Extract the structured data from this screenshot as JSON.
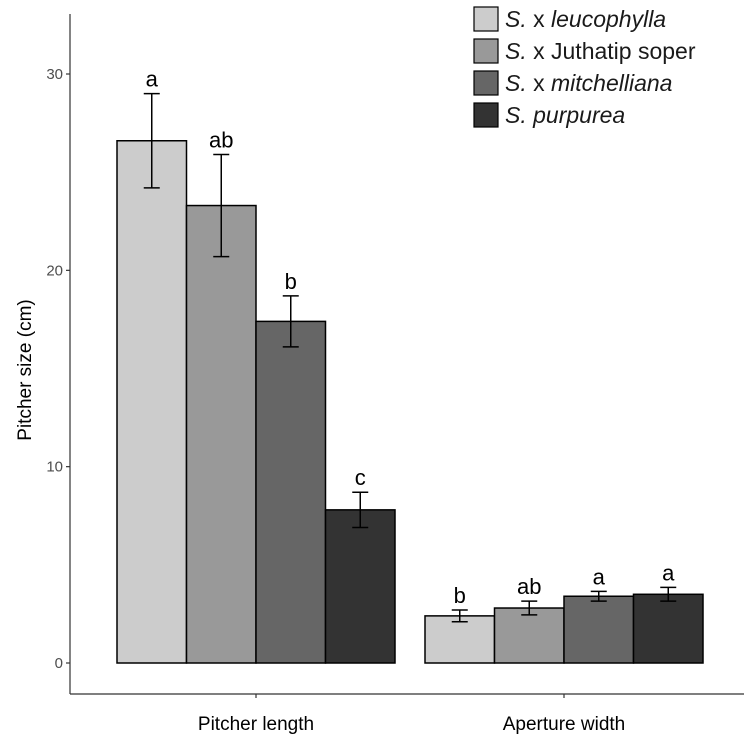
{
  "chart_data": {
    "type": "bar",
    "ylabel": "Pitcher size (cm)",
    "xlabel": "",
    "ylim": [
      0,
      33
    ],
    "yticks": [
      0,
      10,
      20,
      30
    ],
    "categories": [
      "Pitcher length",
      "Aperture width"
    ],
    "legend_position": "top-right",
    "grid": false,
    "series": [
      {
        "name": "S. x leucophylla",
        "name_parts": [
          {
            "text": "S.",
            "italic": true
          },
          {
            "text": " x ",
            "italic": false
          },
          {
            "text": "leucophylla",
            "italic": true
          }
        ],
        "color": "#cccccc",
        "values": [
          26.6,
          2.4
        ],
        "errors": [
          2.4,
          0.3
        ],
        "letters": [
          "a",
          "b"
        ]
      },
      {
        "name": "S. x Juthatip soper",
        "name_parts": [
          {
            "text": "S.",
            "italic": true
          },
          {
            "text": " x Juthatip soper",
            "italic": false
          }
        ],
        "color": "#999999",
        "values": [
          23.3,
          2.8
        ],
        "errors": [
          2.6,
          0.35
        ],
        "letters": [
          "ab",
          "ab"
        ]
      },
      {
        "name": "S. x mitchelliana",
        "name_parts": [
          {
            "text": "S.",
            "italic": true
          },
          {
            "text": " x ",
            "italic": false
          },
          {
            "text": "mitchelliana",
            "italic": true
          }
        ],
        "color": "#666666",
        "values": [
          17.4,
          3.4
        ],
        "errors": [
          1.3,
          0.25
        ],
        "letters": [
          "b",
          "a"
        ]
      },
      {
        "name": "S. purpurea",
        "name_parts": [
          {
            "text": "S.",
            "italic": true
          },
          {
            "text": " ",
            "italic": false
          },
          {
            "text": "purpurea",
            "italic": true
          }
        ],
        "color": "#333333",
        "values": [
          7.8,
          3.5
        ],
        "errors": [
          0.9,
          0.35
        ],
        "letters": [
          "c",
          "a"
        ]
      }
    ]
  }
}
